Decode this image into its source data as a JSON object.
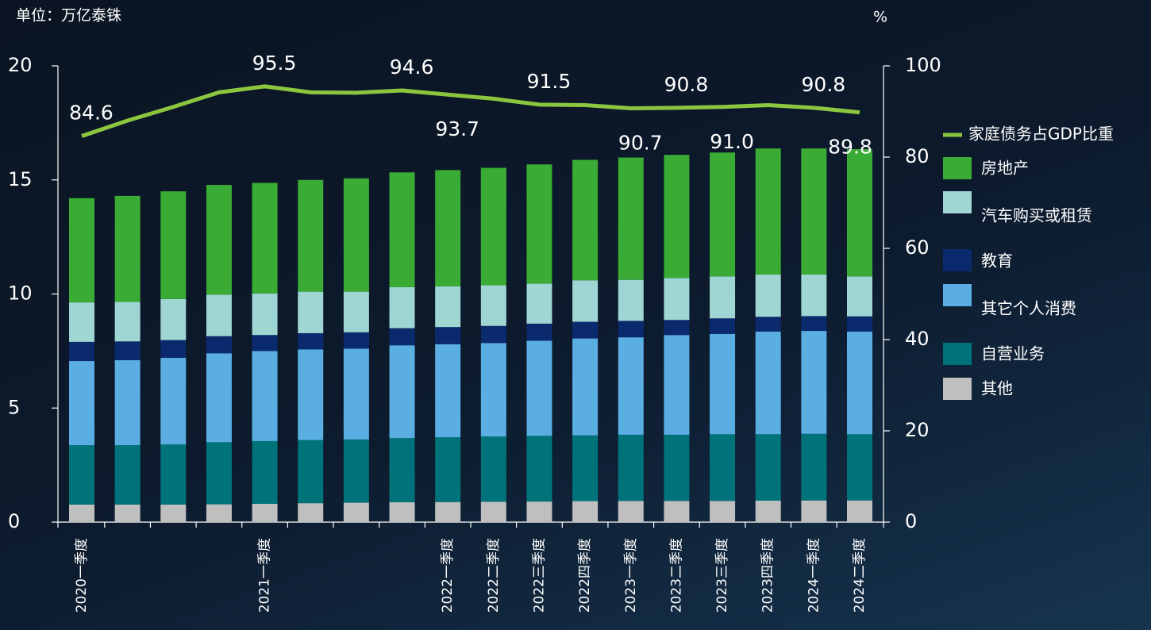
{
  "chart_data": {
    "type": "bar",
    "unit_label": "单位：万亿泰铢",
    "y2_unit_label": "%",
    "categories": [
      "2020一季度",
      null,
      null,
      null,
      "2021一季度",
      null,
      null,
      null,
      "2022一季度",
      "2022二季度",
      "2022三季度",
      "2022四季度",
      "2023一季度",
      "2023二季度",
      "2023三季度",
      "2023四季度",
      "2024一季度",
      "2024二季度"
    ],
    "stacked": true,
    "series": [
      {
        "name": "其他",
        "color": "#bfbfbf",
        "values": [
          0.77,
          0.77,
          0.77,
          0.78,
          0.8,
          0.83,
          0.85,
          0.87,
          0.88,
          0.89,
          0.9,
          0.92,
          0.93,
          0.93,
          0.93,
          0.94,
          0.95,
          0.95
        ]
      },
      {
        "name": "自营业务",
        "color": "#00737a",
        "values": [
          2.6,
          2.6,
          2.63,
          2.72,
          2.75,
          2.77,
          2.77,
          2.81,
          2.84,
          2.86,
          2.88,
          2.88,
          2.9,
          2.9,
          2.92,
          2.91,
          2.92,
          2.9
        ]
      },
      {
        "name": "其它个人消费",
        "color": "#5aaee2",
        "values": [
          3.69,
          3.73,
          3.8,
          3.9,
          3.95,
          3.97,
          3.98,
          4.07,
          4.08,
          4.1,
          4.17,
          4.25,
          4.27,
          4.37,
          4.4,
          4.5,
          4.51,
          4.5
        ]
      },
      {
        "name": "教育",
        "color": "#0b2a6e",
        "values": [
          0.84,
          0.82,
          0.78,
          0.75,
          0.7,
          0.71,
          0.72,
          0.75,
          0.75,
          0.75,
          0.75,
          0.73,
          0.72,
          0.66,
          0.68,
          0.65,
          0.65,
          0.67
        ]
      },
      {
        "name": "汽车购买或租赁",
        "color": "#9fd6d3",
        "values": [
          1.73,
          1.73,
          1.8,
          1.82,
          1.82,
          1.82,
          1.78,
          1.8,
          1.78,
          1.78,
          1.75,
          1.82,
          1.8,
          1.84,
          1.84,
          1.85,
          1.82,
          1.75
        ]
      },
      {
        "name": "房地产",
        "color": "#3aab35",
        "values": [
          4.57,
          4.65,
          4.72,
          4.81,
          4.85,
          4.9,
          4.97,
          5.03,
          5.1,
          5.15,
          5.23,
          5.28,
          5.36,
          5.4,
          5.43,
          5.53,
          5.53,
          5.58
        ]
      },
      {
        "name": "家庭债务占GDP比重",
        "color": "#8cc63f",
        "type": "line",
        "axis": "y2",
        "values": [
          84.6,
          88.0,
          91.0,
          94.2,
          95.5,
          94.2,
          94.1,
          94.6,
          93.7,
          92.8,
          91.5,
          91.4,
          90.7,
          90.8,
          91.0,
          91.4,
          90.8,
          89.8
        ],
        "value_labels": [
          "84.6",
          null,
          null,
          null,
          "95.5",
          null,
          null,
          "94.6",
          "93.7",
          null,
          "91.5",
          null,
          "90.7",
          "90.8",
          "91.0",
          null,
          "90.8",
          "89.8"
        ]
      }
    ],
    "ylim": [
      0,
      20
    ],
    "yticks": [
      0,
      5,
      10,
      15,
      20
    ],
    "y2lim": [
      0,
      100
    ],
    "y2ticks": [
      0,
      20,
      40,
      60,
      80,
      100
    ],
    "legend": "right"
  }
}
